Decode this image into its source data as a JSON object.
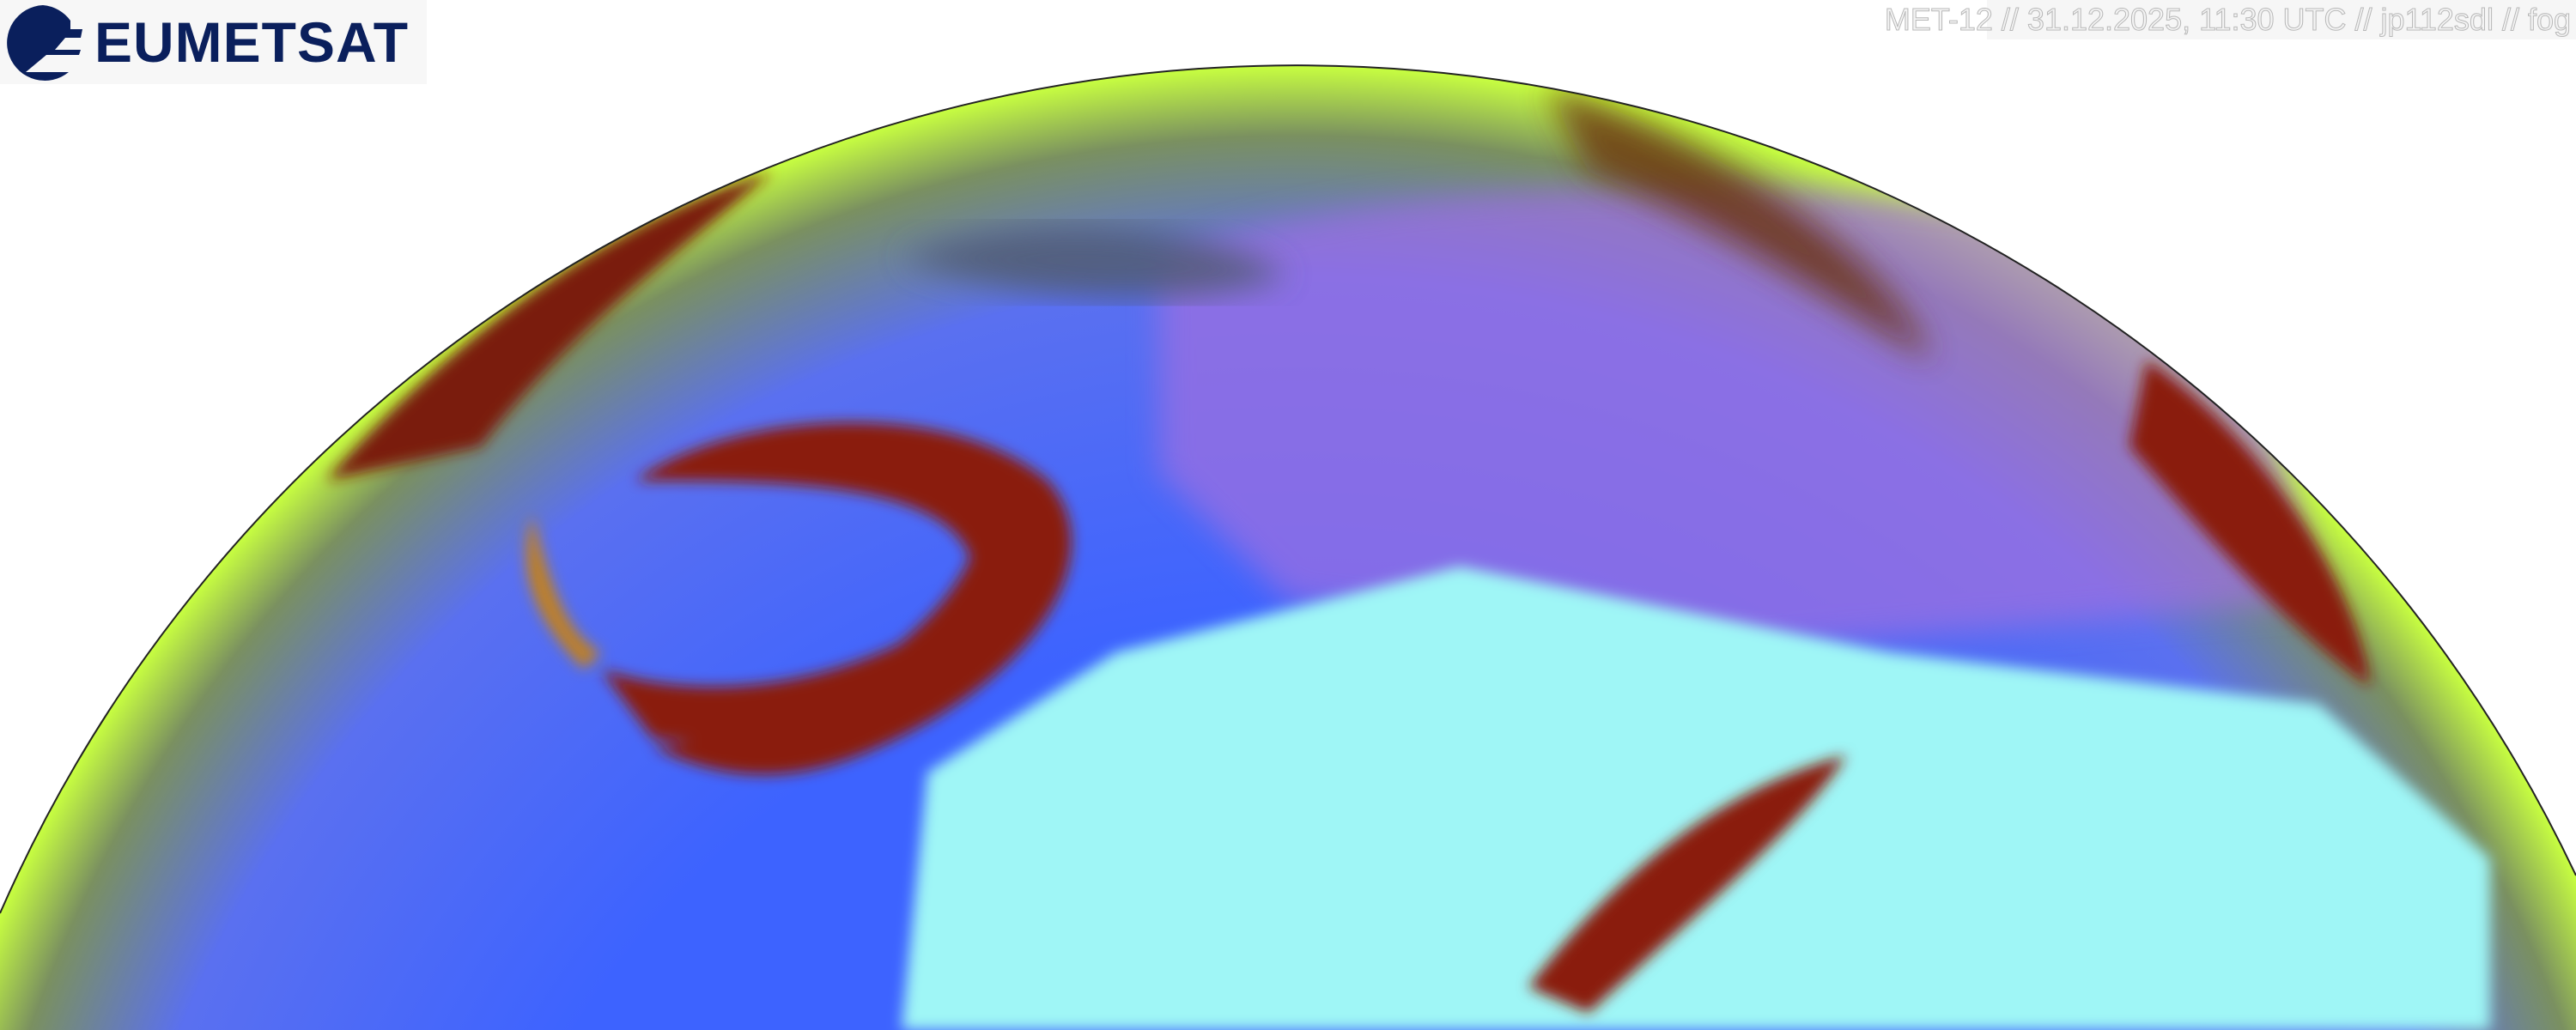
{
  "logo": {
    "text": "EUMETSAT",
    "color": "#0a1f5c"
  },
  "caption": {
    "text": "MET-12 // 31.12.2025, 11:30 UTC // jp112sdl // fog"
  },
  "image": {
    "subject": "satellite-earth-disc",
    "colors": {
      "ocean": "#3b5bff",
      "land_desert": "#9ff6f6",
      "clouds_red": "#8a1a0c",
      "rim_green": "#c8ff40",
      "land_purple": "#b070e8"
    }
  }
}
